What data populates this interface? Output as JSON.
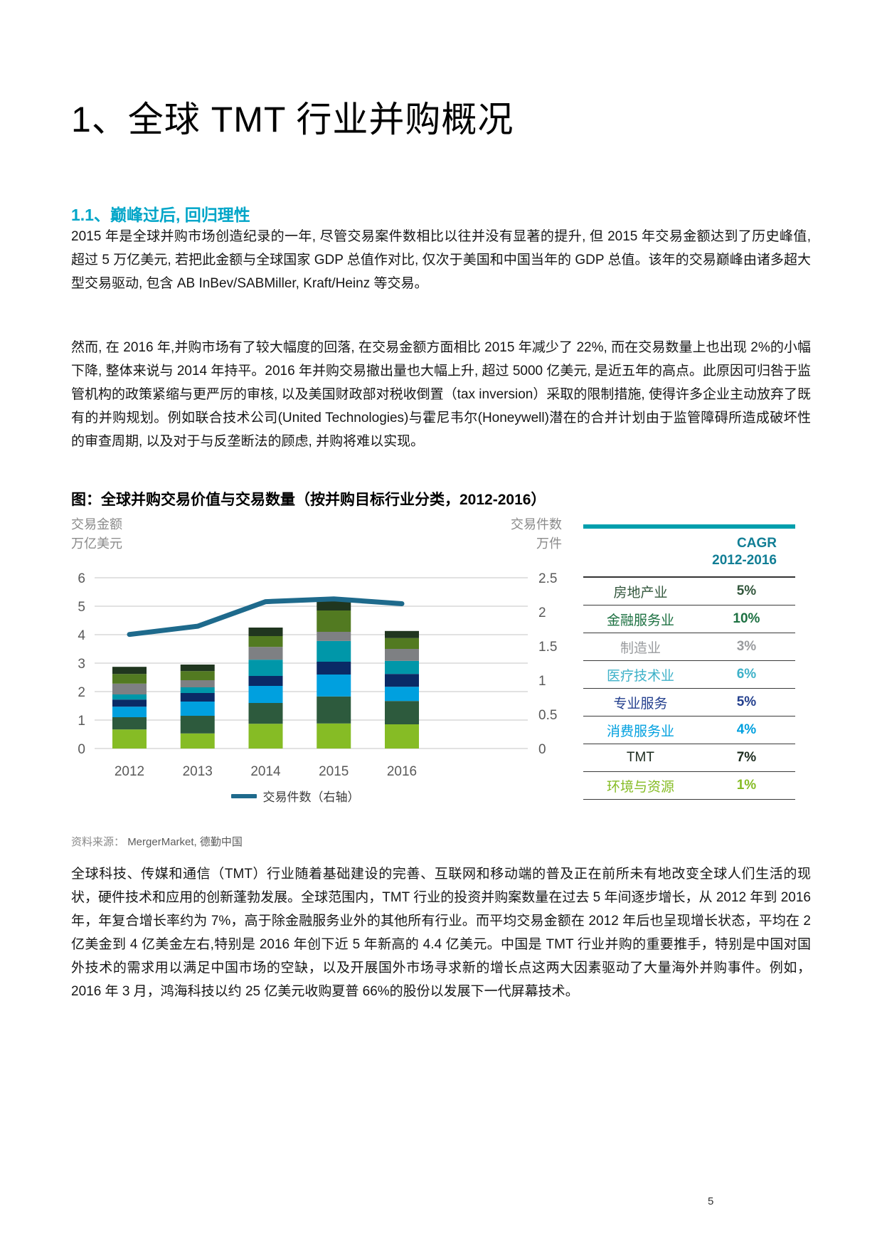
{
  "page": {
    "number": "5"
  },
  "title": "1、全球 TMT 行业并购概况",
  "section": {
    "heading": "1.1、巅峰过后, 回归理性",
    "heading_color": "#00A5C8",
    "paragraph1": "2015 年是全球并购市场创造纪录的一年, 尽管交易案件数相比以往并没有显著的提升, 但 2015 年交易金额达到了历史峰值, 超过 5 万亿美元, 若把此金额与全球国家 GDP 总值作对比, 仅次于美国和中国当年的 GDP 总值。该年的交易巅峰由诸多超大型交易驱动, 包含 AB InBev/SABMiller, Kraft/Heinz 等交易。",
    "paragraph2": "然而, 在 2016 年,并购市场有了较大幅度的回落, 在交易金额方面相比 2015 年减少了 22%, 而在交易数量上也出现 2%的小幅下降, 整体来说与 2014 年持平。2016 年并购交易撤出量也大幅上升, 超过 5000 亿美元, 是近五年的高点。此原因可归咎于监管机构的政策紧缩与更严厉的审核, 以及美国财政部对税收倒置（tax inversion）采取的限制措施, 使得许多企业主动放弃了既有的并购规划。例如联合技术公司(United Technologies)与霍尼韦尔(Honeywell)潜在的合并计划由于监管障碍所造成破坏性的审查周期, 以及对于与反垄断法的顾虑, 并购将难以实现。"
  },
  "figure": {
    "title": "图：全球并购交易价值与交易数量（按并购目标行业分类，2012-2016）",
    "left_axis_title_line1": "交易金额",
    "left_axis_title_line2": "万亿美元",
    "right_axis_title_line1": "交易件数",
    "right_axis_title_line2": "万件",
    "legend_label": "交易件数（右轴）",
    "source_label": "资料来源：",
    "source_value": "MergerMarket, 德勤中国"
  },
  "chart_data": {
    "type": "bar",
    "subtype": "stacked-bars-with-right-axis-line",
    "title": "图：全球并购交易价值与交易数量（按并购目标行业分类，2012-2016）",
    "categories": [
      "2012",
      "2013",
      "2014",
      "2015",
      "2016"
    ],
    "left_axis": {
      "label": "交易金额 万亿美元",
      "range": [
        0,
        6
      ],
      "ticks": [
        0,
        1,
        2,
        3,
        4,
        5,
        6
      ]
    },
    "right_axis": {
      "label": "交易件数 万件",
      "range": [
        0,
        2.5
      ],
      "ticks": [
        0,
        0.5,
        1,
        1.5,
        2,
        2.5
      ]
    },
    "grid": true,
    "legend_position": "bottom",
    "series": [
      {
        "name": "环境与资源",
        "color": "#86BC25",
        "values": [
          0.67,
          0.53,
          0.87,
          0.88,
          0.85
        ]
      },
      {
        "name": "房地产业",
        "color": "#2D5A3D",
        "values": [
          0.43,
          0.62,
          0.73,
          0.95,
          0.82
        ]
      },
      {
        "name": "消费服务业",
        "color": "#00A0DF",
        "values": [
          0.37,
          0.5,
          0.6,
          0.77,
          0.5
        ]
      },
      {
        "name": "专业服务",
        "color": "#0A2A66",
        "values": [
          0.25,
          0.3,
          0.35,
          0.45,
          0.45
        ]
      },
      {
        "name": "医疗技术业",
        "color": "#0097A9",
        "values": [
          0.18,
          0.2,
          0.57,
          0.73,
          0.46
        ]
      },
      {
        "name": "制造业",
        "color": "#7E8083",
        "values": [
          0.38,
          0.25,
          0.45,
          0.32,
          0.42
        ]
      },
      {
        "name": "金融服务业",
        "color": "#527A21",
        "values": [
          0.34,
          0.32,
          0.38,
          0.75,
          0.38
        ]
      },
      {
        "name": "TMT",
        "color": "#20361F",
        "values": [
          0.25,
          0.23,
          0.3,
          0.35,
          0.25
        ]
      }
    ],
    "line_series": {
      "name": "交易件数（右轴）",
      "axis": "right",
      "color": "#1E6A8C",
      "values": [
        1.67,
        1.79,
        2.15,
        2.19,
        2.12
      ]
    }
  },
  "cagr_table": {
    "accent_bar_color": "#009FAD",
    "header_line1": "CAGR",
    "header_line2": "2012-2016",
    "header_color": "#117E95",
    "rows": [
      {
        "label": "房地产业",
        "value": "5%",
        "color": "#33573D"
      },
      {
        "label": "金融服务业",
        "value": "10%",
        "color": "#1D7142"
      },
      {
        "label": "制造业",
        "value": "3%",
        "color": "#999B9E"
      },
      {
        "label": "医疗技术业",
        "value": "6%",
        "color": "#3EB1C8"
      },
      {
        "label": "专业服务",
        "value": "5%",
        "color": "#24408E"
      },
      {
        "label": "消费服务业",
        "value": "4%",
        "color": "#00A0DF"
      },
      {
        "label": "TMT",
        "value": "7%",
        "color": "#1C2B1E"
      },
      {
        "label": "环境与资源",
        "value": "1%",
        "color": "#86BC25"
      }
    ]
  },
  "closing_paragraph": "全球科技、传媒和通信（TMT）行业随着基础建设的完善、互联网和移动端的普及正在前所未有地改变全球人们生活的现状，硬件技术和应用的创新蓬勃发展。全球范围内，TMT 行业的投资并购案数量在过去 5 年间逐步增长，从 2012 年到 2016 年，年复合增长率约为 7%，高于除金融服务业外的其他所有行业。而平均交易金额在 2012 年后也呈现增长状态，平均在 2 亿美金到 4 亿美金左右,特别是 2016 年创下近 5 年新高的 4.4 亿美元。中国是 TMT 行业并购的重要推手，特别是中国对国外技术的需求用以满足中国市场的空缺，以及开展国外市场寻求新的增长点这两大因素驱动了大量海外并购事件。例如，2016 年 3 月，鸿海科技以约 25 亿美元收购夏普 66%的股份以发展下一代屏幕技术。"
}
